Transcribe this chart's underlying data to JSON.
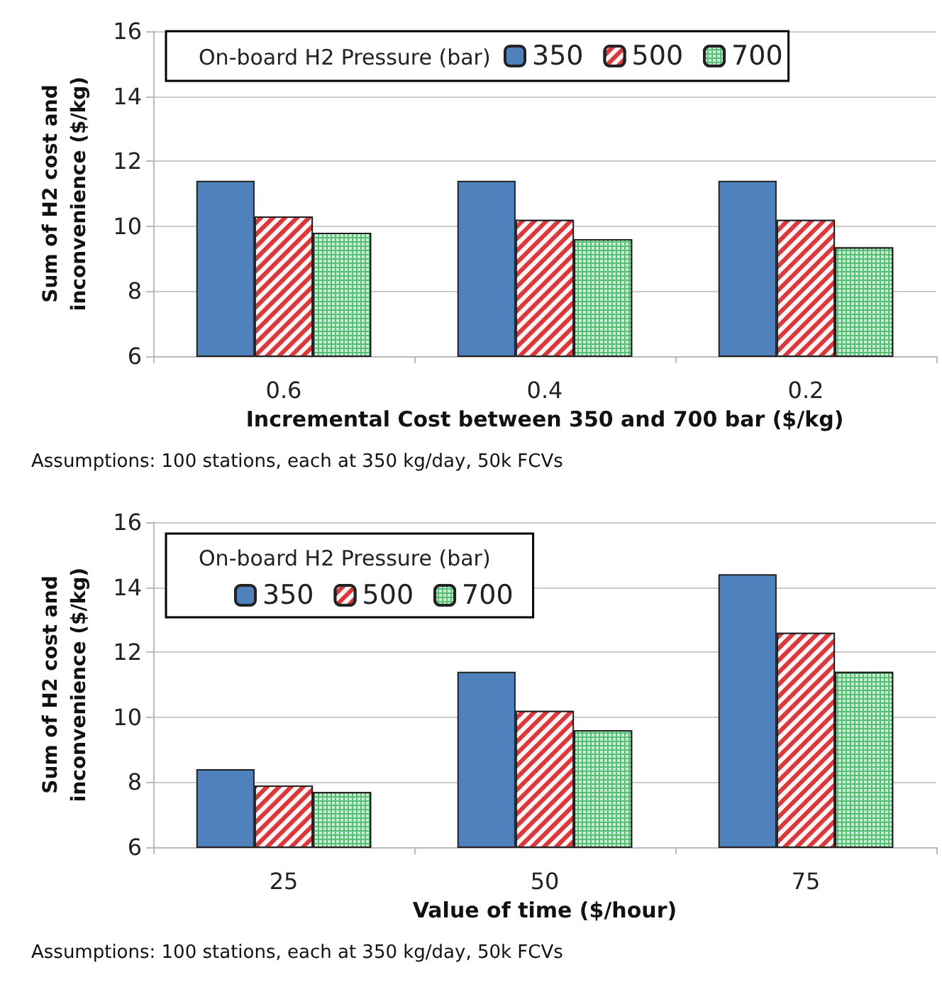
{
  "chart_data": [
    {
      "type": "bar",
      "xlabel": "Incremental Cost between 350 and 700 bar ($/kg)",
      "ylabel": "Sum of H2 cost and inconvenience ($/kg)",
      "legend_title": "On-board H2 Pressure (bar)",
      "categories": [
        "0.6",
        "0.4",
        "0.2"
      ],
      "series": [
        {
          "name": "350",
          "color": "#4f81bd",
          "values": [
            11.4,
            11.4,
            11.4
          ]
        },
        {
          "name": "500",
          "color": "#d9393b",
          "values": [
            10.3,
            10.2,
            10.2
          ]
        },
        {
          "name": "700",
          "color": "#55c074",
          "values": [
            9.8,
            9.6,
            9.35
          ]
        }
      ],
      "ylim": [
        6,
        16
      ],
      "yticks": [
        6,
        8,
        10,
        12,
        14,
        16
      ],
      "grid": "y",
      "legend": "top",
      "annotations": [
        "Assumptions: 100 stations, each at 350 kg/day, 50k FCVs"
      ]
    },
    {
      "type": "bar",
      "xlabel": "Value of time ($/hour)",
      "ylabel": "Sum of H2 cost and inconvenience ($/kg)",
      "legend_title": "On-board H2 Pressure (bar)",
      "categories": [
        "25",
        "50",
        "75"
      ],
      "series": [
        {
          "name": "350",
          "color": "#4f81bd",
          "values": [
            8.4,
            11.4,
            14.4
          ]
        },
        {
          "name": "500",
          "color": "#d9393b",
          "values": [
            7.9,
            10.2,
            12.6
          ]
        },
        {
          "name": "700",
          "color": "#55c074",
          "values": [
            7.7,
            9.6,
            11.4
          ]
        }
      ],
      "ylim": [
        6,
        16
      ],
      "yticks": [
        6,
        8,
        10,
        12,
        14,
        16
      ],
      "grid": "y",
      "legend": "top left",
      "annotations": [
        "Assumptions: 100 stations, each at 350 kg/day, 50k FCVs"
      ]
    }
  ]
}
